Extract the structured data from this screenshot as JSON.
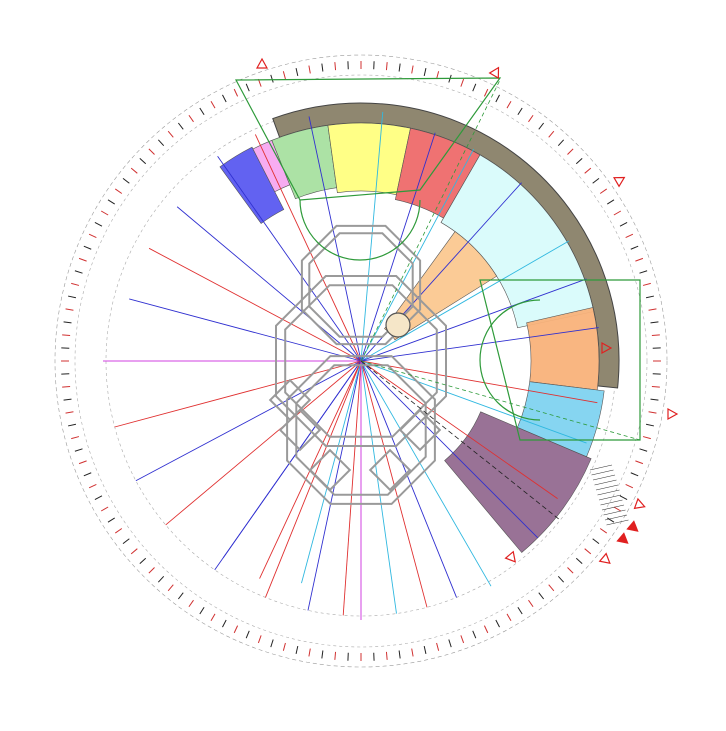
{
  "diagram": {
    "labels": [
      {
        "id": "label-top",
        "text": ""
      },
      {
        "id": "label-right-upper",
        "text": ""
      },
      {
        "id": "label-right-middle",
        "text": ""
      },
      {
        "id": "label-right-lower",
        "text": ""
      }
    ],
    "colors": {
      "band_outer": "#8f8770",
      "segment_blue": "#5a5af0",
      "segment_pink": "#f7a8f0",
      "segment_green": "#a8e0a0",
      "segment_yellow": "#ffff80",
      "segment_red": "#ee6a6a",
      "segment_cyan": "#d8fbfb",
      "segment_peach": "#fbc890",
      "segment_orange": "#f9b27a",
      "segment_skyblue": "#7fd3f0",
      "segment_purple": "#936a90",
      "ray_red": "#e03030",
      "ray_blue": "#3030d0",
      "ray_cyan": "#30b8e0",
      "ray_magenta": "#d040e0",
      "line_green": "#2e9a3a",
      "building_gray": "#9a9a9a",
      "tick_red": "#d03030",
      "tick_black": "#222222",
      "marker_red": "#e02020"
    },
    "icons": [
      "compass-marker-icon",
      "north-arrow-icon"
    ]
  }
}
